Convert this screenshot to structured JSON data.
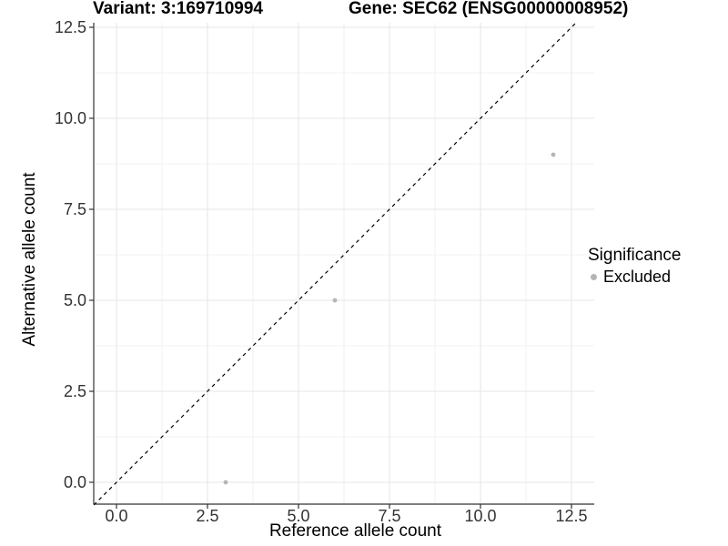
{
  "chart_data": {
    "type": "scatter",
    "title_left": "Variant: 3:169710994",
    "title_right": "Gene: SEC62 (ENSG00000008952)",
    "xlabel": "Reference allele count",
    "ylabel": "Alternative allele count",
    "x_ticks": {
      "values": [
        0,
        2.5,
        5,
        7.5,
        10,
        12.5
      ],
      "labels": [
        "0.0",
        "2.5",
        "5.0",
        "7.5",
        "10.0",
        "12.5"
      ]
    },
    "y_ticks": {
      "values": [
        0,
        2.5,
        5,
        7.5,
        10,
        12.5
      ],
      "labels": [
        "0.0",
        "2.5",
        "5.0",
        "7.5",
        "10.0",
        "12.5"
      ]
    },
    "xlim": [
      -0.625,
      12.625
    ],
    "ylim": [
      -0.625,
      12.625
    ],
    "grid": "major+minor",
    "identity_line": {
      "show": true,
      "style": "dashed",
      "color": "#000000"
    },
    "series": [
      {
        "name": "Excluded",
        "color": "#b5b5b5",
        "points": [
          [
            3,
            0
          ],
          [
            6,
            5
          ],
          [
            12,
            9
          ]
        ]
      }
    ],
    "legend": {
      "title": "Significance",
      "position": "right",
      "items": [
        {
          "label": "Excluded",
          "color": "#b5b5b5"
        }
      ]
    }
  },
  "colors": {
    "background": "#ffffff",
    "point": "#b5b5b5",
    "grid_major": "#e6e6e6",
    "grid_minor": "#f2f2f2",
    "axis_line": "#333333",
    "tick_text": "#333333",
    "title_text": "#000000"
  }
}
